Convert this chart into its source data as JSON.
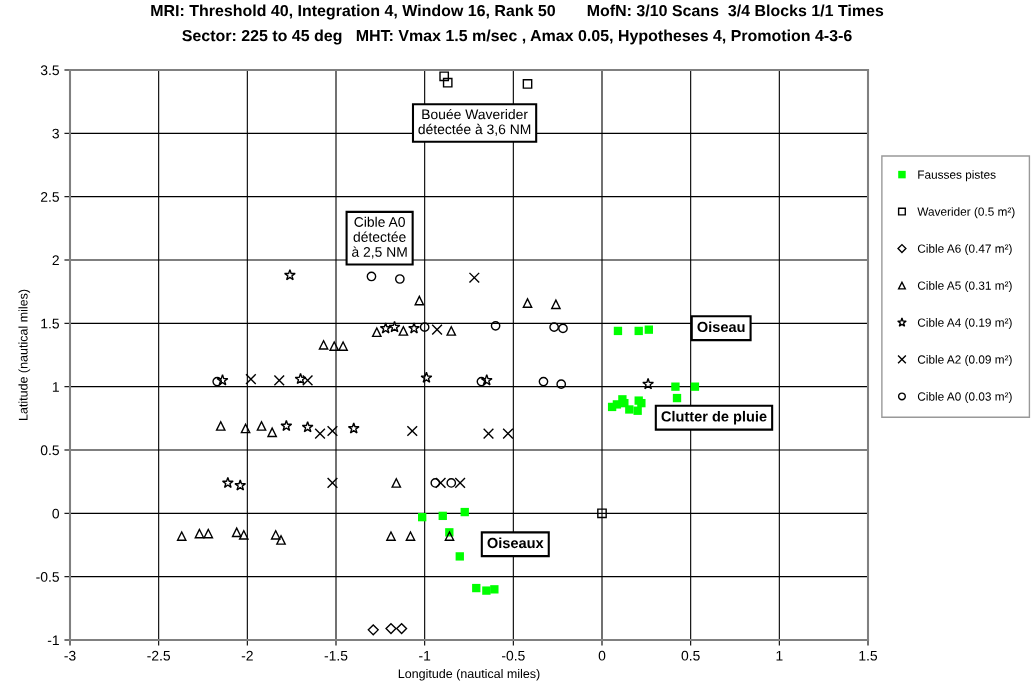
{
  "chart_data": {
    "type": "scatter",
    "title": "MRI: Threshold 40, Integration 4, Window 16, Rank 50       MofN: 3/10 Scans  3/4 Blocks 1/1 Times",
    "subtitle": "Sector: 225 to 45 deg   MHT: Vmax 1.5 m/sec , Amax 0.05, Hypotheses 4, Promotion 4-3-6",
    "xlabel": "Longitude (nautical miles)",
    "ylabel": "Latitude (nautical miles)",
    "xlim": [
      -3,
      1.5
    ],
    "ylim": [
      -1,
      3.5
    ],
    "xticks": [
      -3,
      -2.5,
      -2,
      -1.5,
      -1,
      -0.5,
      0,
      0.5,
      1,
      1.5
    ],
    "yticks": [
      -1,
      -0.5,
      0,
      0.5,
      1,
      1.5,
      2,
      2.5,
      3,
      3.5
    ],
    "grid": true,
    "legend": "right",
    "series": [
      {
        "name": "Fausses pistes",
        "color": "#00ff00",
        "marker": "square",
        "x": [
          -1.014,
          -0.898,
          -0.774,
          -0.861,
          -0.802,
          -0.709,
          -0.652,
          -0.607,
          0.09,
          0.207,
          0.264,
          0.414,
          0.524,
          0.057,
          0.084,
          0.115,
          0.126,
          0.154,
          0.207,
          0.201,
          0.222,
          0.423
        ],
        "values": [
          -0.03,
          -0.02,
          0.01,
          -0.15,
          -0.34,
          -0.59,
          -0.61,
          -0.6,
          1.44,
          1.44,
          1.45,
          1.0,
          1.0,
          0.84,
          0.86,
          0.9,
          0.87,
          0.82,
          0.89,
          0.81,
          0.87,
          0.91
        ]
      },
      {
        "name": "Waverider (0.5 m²)",
        "color": "#000000",
        "marker": "square",
        "x": [
          -0.89,
          -0.87,
          -0.42,
          0
        ],
        "values": [
          3.45,
          3.4,
          3.39,
          0
        ]
      },
      {
        "name": "Cible A6 (0.47 m²)",
        "color": "#000000",
        "marker": "diamond",
        "x": [
          -1.29,
          -1.19,
          -1.13
        ],
        "values": [
          -0.92,
          -0.91,
          -0.91
        ]
      },
      {
        "name": "Cible A5 (0.31 m²)",
        "color": "#000000",
        "marker": "triangle",
        "x": [
          -1.03,
          -0.42,
          -0.26,
          -1.27,
          -1.12,
          -0.85,
          -1.57,
          -1.51,
          -1.46,
          -2.15,
          -2.01,
          -1.92,
          -1.86,
          -1.16,
          -2.37,
          -2.27,
          -2.22,
          -2.06,
          -2.02,
          -1.84,
          -1.81,
          -1.19,
          -1.08,
          -0.86
        ],
        "values": [
          1.68,
          1.66,
          1.65,
          1.43,
          1.44,
          1.44,
          1.33,
          1.32,
          1.32,
          0.69,
          0.67,
          0.69,
          0.64,
          0.24,
          -0.18,
          -0.16,
          -0.16,
          -0.15,
          -0.17,
          -0.17,
          -0.21,
          -0.18,
          -0.18,
          -0.18
        ]
      },
      {
        "name": "Cible A4 (0.19 m²)",
        "color": "#000000",
        "marker": "star",
        "x": [
          -1.76,
          -1.22,
          -1.17,
          -1.06,
          -2.14,
          -1.7,
          -0.99,
          -0.65,
          -1.78,
          -1.66,
          -1.4,
          -2.11,
          -2.04,
          0.26
        ],
        "values": [
          1.88,
          1.46,
          1.47,
          1.46,
          1.05,
          1.06,
          1.07,
          1.05,
          0.69,
          0.68,
          0.67,
          0.24,
          0.22,
          1.02
        ]
      },
      {
        "name": "Cible A2 (0.09 m²)",
        "color": "#000000",
        "marker": "cross",
        "x": [
          -0.72,
          -0.93,
          -1.98,
          -1.82,
          -1.66,
          -1.59,
          -1.52,
          -1.07,
          -0.64,
          -0.53,
          -1.52,
          -0.91,
          -0.8
        ],
        "values": [
          1.86,
          1.45,
          1.06,
          1.05,
          1.05,
          0.63,
          0.65,
          0.65,
          0.63,
          0.63,
          0.24,
          0.24,
          0.24
        ]
      },
      {
        "name": "Cible A0 (0.03 m²)",
        "color": "#000000",
        "marker": "circle",
        "x": [
          -1.3,
          -1.14,
          -1.0,
          -0.6,
          -0.27,
          -0.22,
          -0.68,
          -0.33,
          -0.23,
          -0.94,
          -0.85,
          -2.17
        ],
        "values": [
          1.87,
          1.85,
          1.47,
          1.48,
          1.47,
          1.46,
          1.04,
          1.04,
          1.02,
          0.24,
          0.24,
          1.04
        ]
      }
    ],
    "annotations": [
      "Bouée Waverider\ndétectée à 3,6 NM",
      "Cible A0\ndétectée\nà 2,5 NM",
      "Oiseaux",
      "Oiseau",
      "Clutter de pluie"
    ]
  }
}
